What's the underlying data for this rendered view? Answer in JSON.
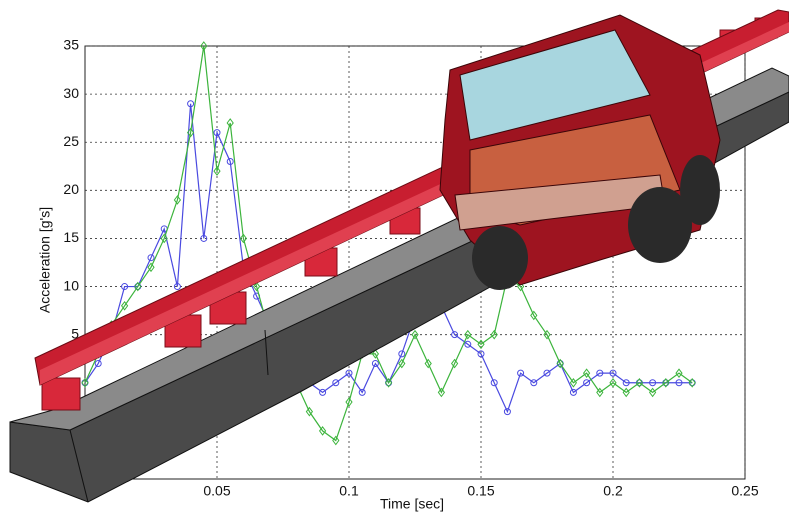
{
  "chart_data": {
    "type": "line",
    "x_label": "Time [sec]",
    "y_label": "Acceleration [g's]",
    "x": [
      0,
      0.005,
      0.01,
      0.015,
      0.02,
      0.025,
      0.03,
      0.035,
      0.04,
      0.045,
      0.05,
      0.055,
      0.06,
      0.065,
      0.07,
      0.075,
      0.08,
      0.085,
      0.09,
      0.095,
      0.1,
      0.105,
      0.11,
      0.115,
      0.12,
      0.125,
      0.13,
      0.135,
      0.14,
      0.145,
      0.15,
      0.155,
      0.16,
      0.165,
      0.17,
      0.175,
      0.18,
      0.185,
      0.19,
      0.195,
      0.2,
      0.205,
      0.21,
      0.215,
      0.22,
      0.225,
      0.23
    ],
    "series": [
      {
        "color": "#4a4ae0",
        "values": [
          0,
          2,
          5,
          10,
          10,
          13,
          16,
          10,
          29,
          15,
          26,
          23,
          12,
          9,
          6,
          3,
          1,
          0,
          -1,
          0,
          1,
          -1,
          2,
          0,
          3,
          7,
          12,
          8,
          5,
          4,
          3,
          0,
          -3,
          1,
          0,
          1,
          2,
          -1,
          0,
          1,
          1,
          0,
          0,
          0,
          0,
          0,
          0
        ]
      },
      {
        "color": "#3cb43c",
        "values": [
          0,
          3,
          6,
          8,
          10,
          12,
          15,
          19,
          26,
          35,
          22,
          27,
          15,
          10,
          5,
          2,
          0,
          -3,
          -5,
          -6,
          -2,
          3,
          3,
          0,
          2,
          5,
          2,
          -1,
          2,
          5,
          4,
          5,
          11,
          10,
          7,
          5,
          2,
          0,
          1,
          -1,
          0,
          -1,
          0,
          -1,
          0,
          1,
          0
        ]
      }
    ],
    "xlim": [
      0,
      0.25
    ],
    "xticks": [
      0.05,
      0.1,
      0.15,
      0.2,
      0.25
    ],
    "ylim": [
      -10,
      35
    ],
    "yticks": [
      5,
      10,
      15,
      20,
      25,
      30,
      35
    ],
    "grid": true
  }
}
